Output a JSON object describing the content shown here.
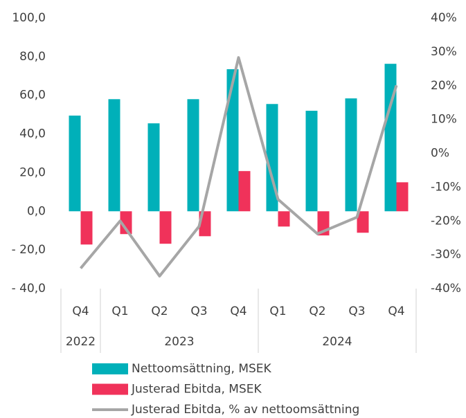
{
  "chart_data": {
    "type": "bar-line",
    "categories": [
      "Q4",
      "Q1",
      "Q2",
      "Q3",
      "Q4",
      "Q1",
      "Q2",
      "Q3",
      "Q4"
    ],
    "groups": [
      {
        "label": "2022",
        "count": 1
      },
      {
        "label": "2023",
        "count": 4
      },
      {
        "label": "2024",
        "count": 4
      }
    ],
    "series": [
      {
        "name": "Nettoomsättning, MSEK",
        "type": "bar",
        "color": "#00b0b9",
        "values": [
          49.5,
          58,
          45.5,
          58,
          73.5,
          55.5,
          52,
          58.4,
          76.3
        ]
      },
      {
        "name": "Justerad Ebitda, MSEK",
        "type": "bar",
        "color": "#f0325a",
        "values": [
          -17.2,
          -11.8,
          -16.8,
          -12.9,
          20.8,
          -7.9,
          -12.5,
          -11.1,
          15
        ]
      },
      {
        "name": "Justerad Ebitda, % av nettoomsättning",
        "type": "line",
        "axis": "y2",
        "color": "#a6a6a6",
        "values": [
          -34,
          -20,
          -36.3,
          -21.6,
          28.3,
          -13.6,
          -23.8,
          -18.9,
          20.1
        ]
      }
    ],
    "ylim": [
      -40,
      100
    ],
    "yticks": [
      {
        "value": 100,
        "label": "100,0"
      },
      {
        "value": 80,
        "label": "80,0"
      },
      {
        "value": 60,
        "label": "60,0"
      },
      {
        "value": 40,
        "label": "40,0"
      },
      {
        "value": 20,
        "label": "20,0"
      },
      {
        "value": 0,
        "label": "0,0"
      },
      {
        "value": -20,
        "label": "- 20,0"
      },
      {
        "value": -40,
        "label": "- 40,0"
      }
    ],
    "y2lim": [
      -40,
      40
    ],
    "y2ticks": [
      {
        "value": 40,
        "label": "40%"
      },
      {
        "value": 30,
        "label": "30%"
      },
      {
        "value": 20,
        "label": "20%"
      },
      {
        "value": 10,
        "label": "10%"
      },
      {
        "value": 0,
        "label": "0%"
      },
      {
        "value": -10,
        "label": "-10%"
      },
      {
        "value": -20,
        "label": "-20%"
      },
      {
        "value": -30,
        "label": "-30%"
      },
      {
        "value": -40,
        "label": "-40%"
      }
    ],
    "grid": false,
    "legend": "bottom"
  }
}
